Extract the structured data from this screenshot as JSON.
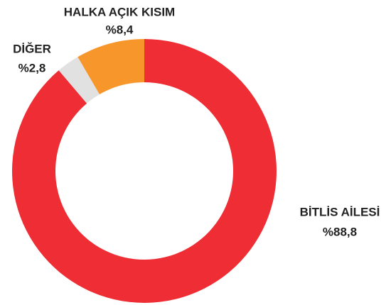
{
  "chart_data": {
    "type": "donut",
    "categories": [
      "BİTLİS AİLESİ",
      "DİĞER",
      "HALKA AÇIK KISIM"
    ],
    "values": [
      88.8,
      2.8,
      8.4
    ],
    "value_labels": [
      "%88,8",
      "%2,8",
      "%8,4"
    ],
    "colors": [
      "#ee2e34",
      "#e1e1e1",
      "#f7962a"
    ]
  }
}
